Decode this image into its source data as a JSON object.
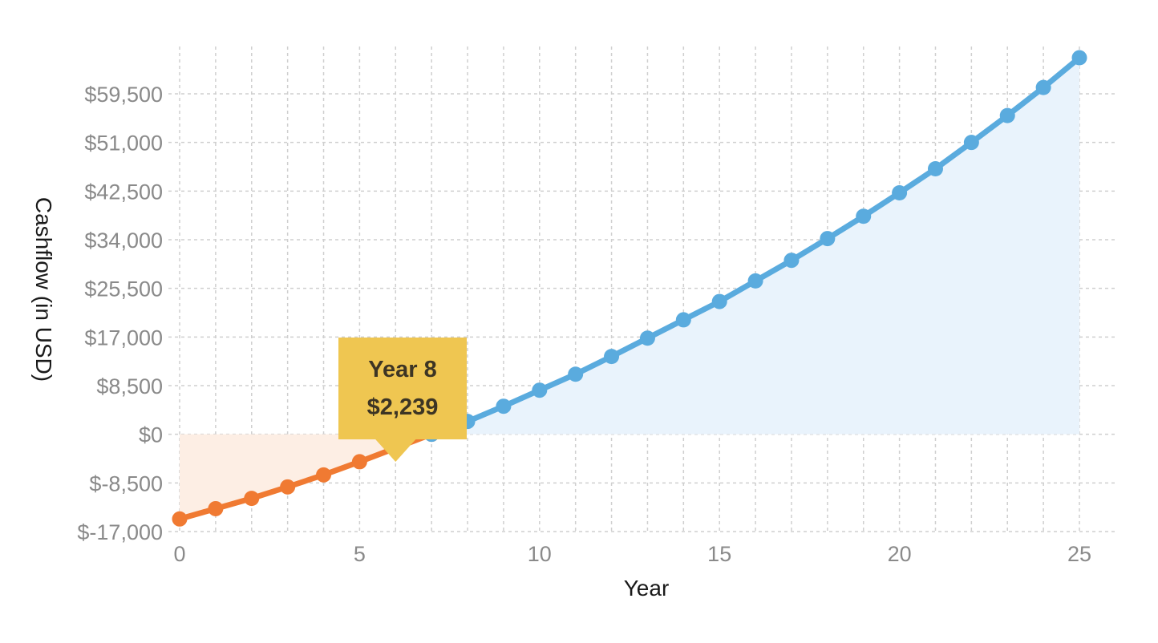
{
  "chart_data": {
    "type": "line",
    "xlabel": "Year",
    "ylabel": "Cashflow (in USD)",
    "xlim": [
      0,
      25
    ],
    "ylim": [
      -17000,
      59500
    ],
    "x_ticks": [
      0,
      5,
      10,
      15,
      20,
      25
    ],
    "x_tick_labels": [
      "0",
      "5",
      "10",
      "15",
      "20",
      "25"
    ],
    "y_ticks": [
      -17000,
      -8500,
      0,
      8500,
      17000,
      25500,
      34000,
      42500,
      51000,
      59500
    ],
    "y_tick_labels": [
      "$-17,000",
      "$-8,500",
      "$0",
      "$8,500",
      "$17,000",
      "$25,500",
      "$34,000",
      "$42,500",
      "$51,000",
      "$59,500"
    ],
    "grid": true,
    "series": [
      {
        "color": "#f07a32",
        "area_color": "#fdeee4",
        "x": [
          0,
          1,
          2,
          3,
          4,
          5,
          6,
          7
        ],
        "values": [
          -14800,
          -13000,
          -11200,
          -9200,
          -7100,
          -4800,
          -2400,
          0
        ]
      },
      {
        "color": "#5aabde",
        "area_color": "#e9f3fc",
        "x": [
          7,
          8,
          9,
          10,
          11,
          12,
          13,
          14,
          15,
          16,
          17,
          18,
          19,
          20,
          21,
          22,
          23,
          24,
          25
        ],
        "values": [
          0,
          2239,
          4900,
          7700,
          10500,
          13600,
          16800,
          20000,
          23200,
          26800,
          30400,
          34200,
          38100,
          42200,
          46400,
          51000,
          55700,
          60600,
          65800
        ]
      }
    ],
    "tooltip": {
      "title": "Year 8",
      "value": "$2,239",
      "background": "#efc651",
      "pointer_x": 6
    }
  }
}
